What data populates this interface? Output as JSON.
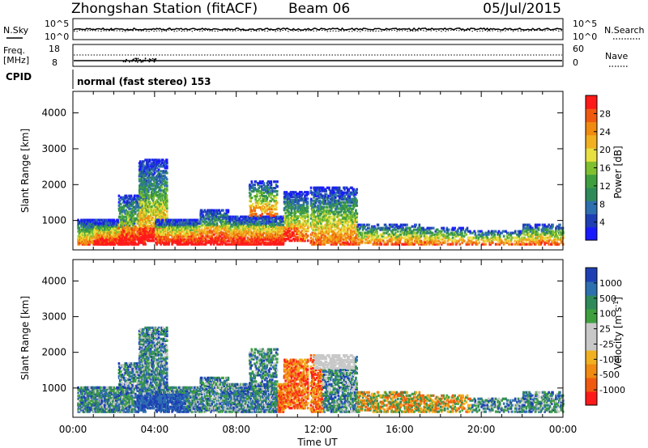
{
  "header": {
    "station": "Zhongshan Station (fitACF)",
    "beam": "Beam 06",
    "date": "05/Jul/2015",
    "cpid_label": "CPID",
    "cpid_value": "normal (fast stereo) 153"
  },
  "panels": {
    "nsky": {
      "left_label": "N.Sky",
      "right_label": "N.Search",
      "left_ticks": [
        "10^5",
        "10^0"
      ],
      "right_ticks": [
        "10^5",
        "10^0"
      ]
    },
    "freq": {
      "left_label_1": "Freq.",
      "left_label_2": "[MHz]",
      "right_label": "Nave",
      "left_ticks": [
        "18",
        "8"
      ],
      "right_ticks": [
        "60",
        "0"
      ]
    }
  },
  "colors": {
    "power_scale": [
      "#1a1aff",
      "#1e3fb4",
      "#2e6fb0",
      "#2f8a5a",
      "#3f9f3f",
      "#80c030",
      "#e8e040",
      "#f0b020",
      "#f08a10",
      "#f05a10",
      "#ff1a1a"
    ],
    "velocity_scale": [
      "#ff1a1a",
      "#f05a10",
      "#f08a10",
      "#f0b020",
      "#c8c8c8",
      "#c8c8c8",
      "#3f9f3f",
      "#2f8a5a",
      "#2e6fb0",
      "#1e3fb4"
    ]
  },
  "chart_data": [
    {
      "type": "heatmap",
      "name": "Power",
      "ylabel": "Slant Range [km]",
      "ylim": [
        180,
        4600
      ],
      "yticks": [
        1000,
        2000,
        3000,
        4000
      ],
      "xlim_hours": [
        0,
        24
      ],
      "colorbar_label": "Power [dB]",
      "colorbar_ticks": [
        "4",
        "8",
        "12",
        "16",
        "20",
        "24",
        "28"
      ],
      "colorbar_range": [
        0,
        30
      ]
    },
    {
      "type": "heatmap",
      "name": "Velocity",
      "ylabel": "Slant Range [km]",
      "xlabel": "Time UT",
      "ylim": [
        180,
        4600
      ],
      "yticks": [
        1000,
        2000,
        3000,
        4000
      ],
      "xticks": [
        "00:00",
        "04:00",
        "08:00",
        "12:00",
        "16:00",
        "20:00",
        "00:00"
      ],
      "xlim_hours": [
        0,
        24
      ],
      "colorbar_label": "Velocity [m s^-1]",
      "colorbar_ticks": [
        "-1000",
        "-500",
        "-100",
        "-25",
        "25",
        "100",
        "500",
        "1000"
      ]
    }
  ]
}
